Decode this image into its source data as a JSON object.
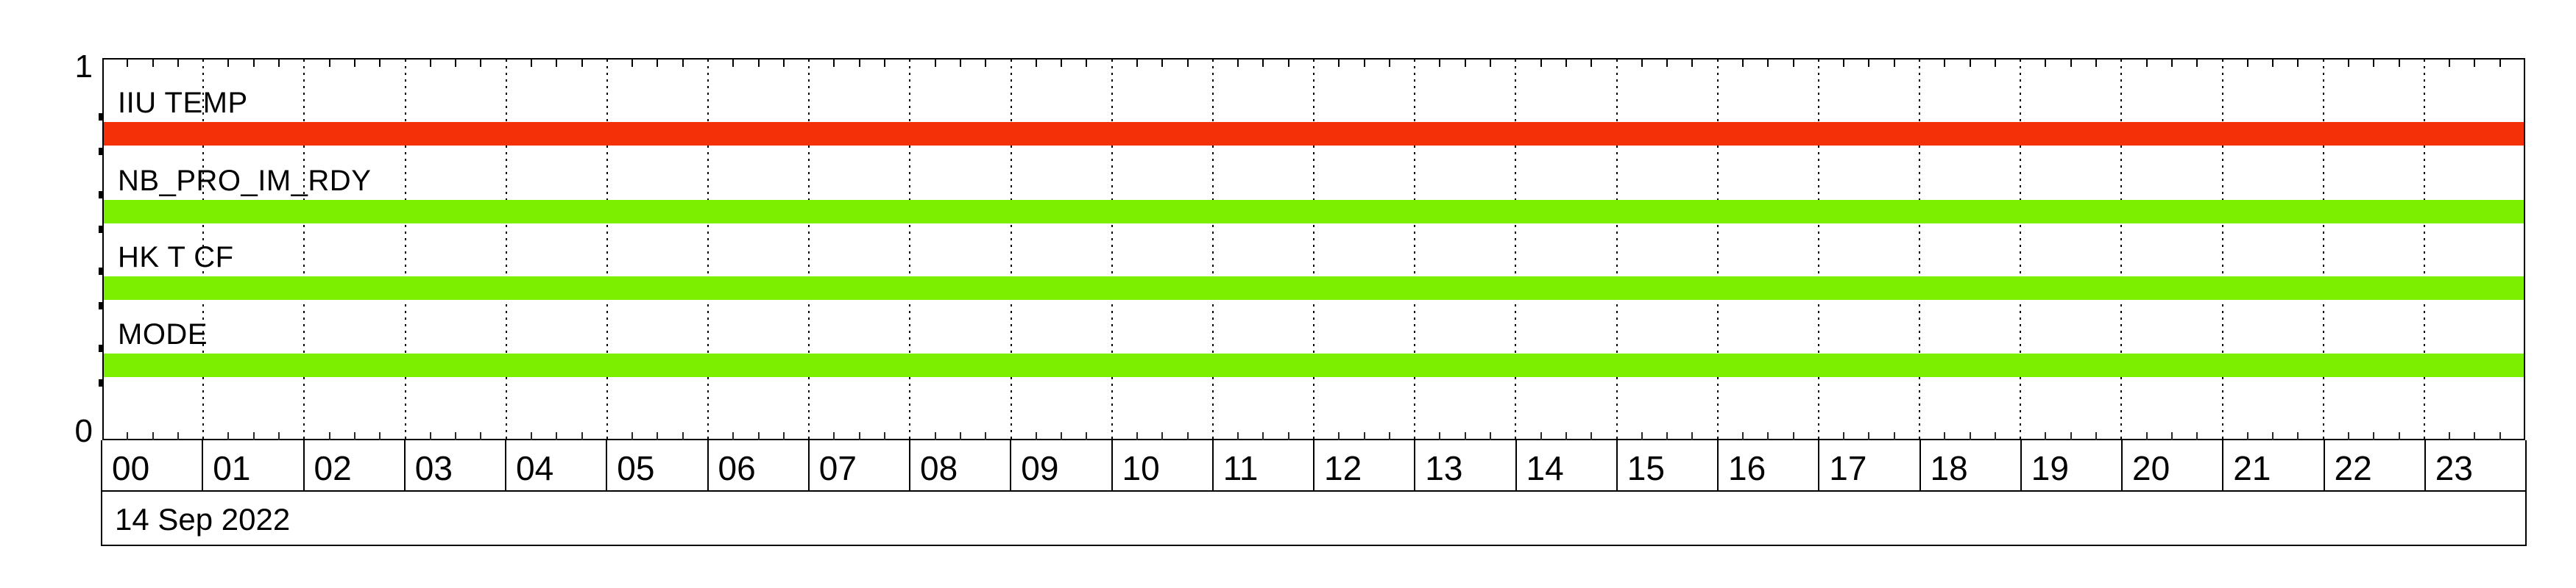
{
  "date_label": "14 Sep 2022",
  "y_axis": {
    "top": "1",
    "bottom": "0"
  },
  "hours": [
    "00",
    "01",
    "02",
    "03",
    "04",
    "05",
    "06",
    "07",
    "08",
    "09",
    "10",
    "11",
    "12",
    "13",
    "14",
    "15",
    "16",
    "17",
    "18",
    "19",
    "20",
    "21",
    "22",
    "23"
  ],
  "colors": {
    "ok_green": "#7cef00",
    "alert_red": "#f43008",
    "axis_black": "#000000"
  },
  "signals": [
    {
      "label": "IIU TEMP",
      "color": "#f43008"
    },
    {
      "label": "NB_PRO_IM_RDY",
      "color": "#7cef00"
    },
    {
      "label": "HK T CF",
      "color": "#7cef00"
    },
    {
      "label": "MODE",
      "color": "#7cef00"
    }
  ],
  "chart_data": {
    "type": "area",
    "title": "",
    "xlabel": "14 Sep 2022",
    "ylabel": "",
    "ylim": [
      0,
      1
    ],
    "ytick_labels": [
      "0",
      "1"
    ],
    "x": [
      "00",
      "01",
      "02",
      "03",
      "04",
      "05",
      "06",
      "07",
      "08",
      "09",
      "10",
      "11",
      "12",
      "13",
      "14",
      "15",
      "16",
      "17",
      "18",
      "19",
      "20",
      "21",
      "22",
      "23"
    ],
    "x_tick_minor": "15 min",
    "grid": "dashed vertical line at every hour, full plot height",
    "legend": "signal names drawn inline above each band",
    "series": [
      {
        "name": "IIU TEMP",
        "color": "#f43008",
        "values": [
          1,
          1,
          1,
          1,
          1,
          1,
          1,
          1,
          1,
          1,
          1,
          1,
          1,
          1,
          1,
          1,
          1,
          1,
          1,
          1,
          1,
          1,
          1,
          1
        ]
      },
      {
        "name": "NB_PRO_IM_RDY",
        "color": "#7cef00",
        "values": [
          1,
          1,
          1,
          1,
          1,
          1,
          1,
          1,
          1,
          1,
          1,
          1,
          1,
          1,
          1,
          1,
          1,
          1,
          1,
          1,
          1,
          1,
          1,
          1
        ]
      },
      {
        "name": "HK T CF",
        "color": "#7cef00",
        "values": [
          1,
          1,
          1,
          1,
          1,
          1,
          1,
          1,
          1,
          1,
          1,
          1,
          1,
          1,
          1,
          1,
          1,
          1,
          1,
          1,
          1,
          1,
          1,
          1
        ]
      },
      {
        "name": "MODE",
        "color": "#7cef00",
        "values": [
          1,
          1,
          1,
          1,
          1,
          1,
          1,
          1,
          1,
          1,
          1,
          1,
          1,
          1,
          1,
          1,
          1,
          1,
          1,
          1,
          1,
          1,
          1,
          1
        ]
      }
    ]
  }
}
